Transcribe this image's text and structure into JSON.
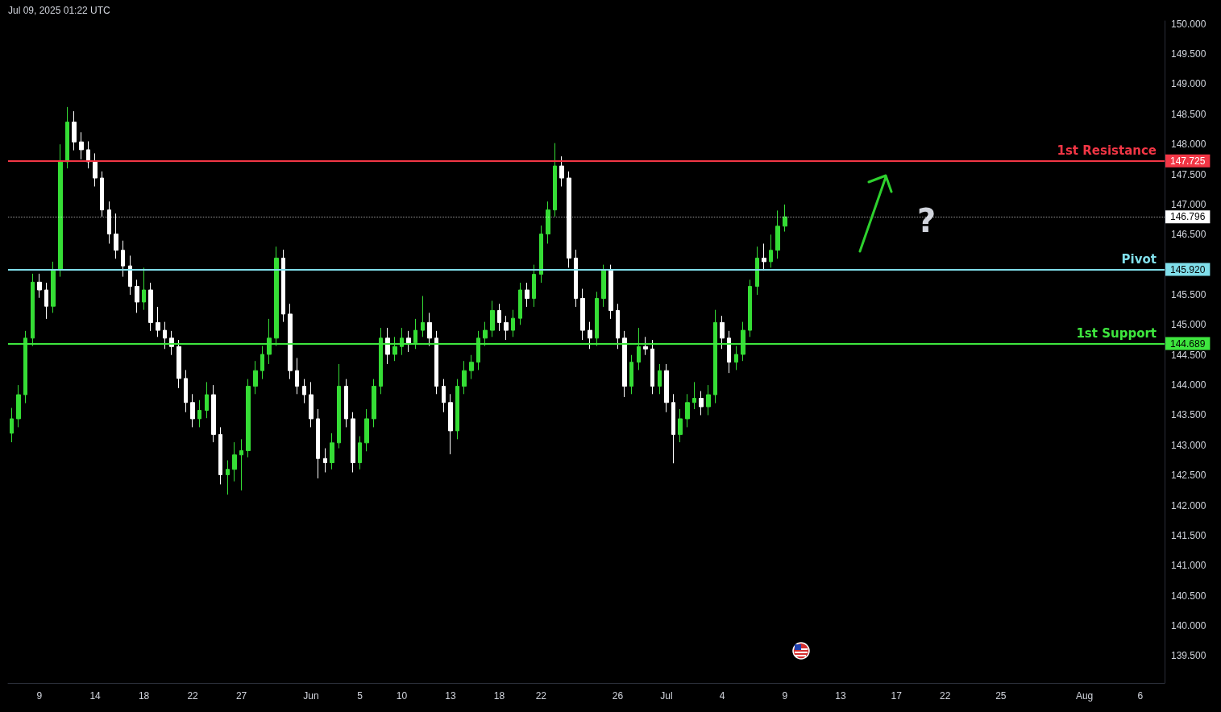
{
  "chart_data": {
    "type": "candlestick",
    "annotations": [
      "Jul 09, 2025 01:22 UTC",
      "?",
      "147.725",
      "145.920",
      "144.689",
      "146.796"
    ],
    "categories": [
      null,
      null,
      null,
      null,
      "9",
      null,
      null,
      null,
      null,
      null,
      null,
      null,
      "14",
      null,
      null,
      null,
      null,
      null,
      null,
      "18",
      null,
      null,
      null,
      null,
      null,
      null,
      "22",
      null,
      null,
      null,
      null,
      null,
      null,
      "27",
      null,
      null,
      null,
      null,
      null,
      null,
      null,
      null,
      null,
      "Jun",
      null,
      null,
      null,
      null,
      null,
      null,
      "5",
      null,
      null,
      null,
      null,
      null,
      "10",
      null,
      null,
      null,
      null,
      null,
      null,
      "13",
      null,
      null,
      null,
      null,
      null,
      null,
      "18",
      null,
      null,
      null,
      null,
      null,
      "22",
      null,
      null,
      null,
      null,
      null,
      null,
      null,
      null,
      null,
      null,
      "26",
      null,
      null,
      null,
      null,
      null,
      null,
      "Jul",
      null,
      null,
      null,
      null,
      null,
      null,
      null,
      "4",
      null,
      null,
      null,
      null,
      null,
      null,
      null,
      null,
      "9",
      null,
      null,
      null,
      null,
      null,
      null,
      null,
      "13",
      null,
      null,
      null,
      null,
      null,
      null,
      null,
      "17",
      null,
      null,
      null,
      null,
      null,
      null,
      "22",
      null,
      null,
      null,
      null,
      null,
      null,
      null,
      "25",
      null,
      null,
      null,
      null,
      null,
      null,
      null,
      null,
      null,
      null,
      null,
      "Aug",
      null,
      null,
      null,
      null,
      null,
      null,
      null,
      "6",
      null,
      null,
      null
    ],
    "ohlc": [
      [
        143.2,
        143.62,
        143.05,
        143.44
      ],
      [
        143.44,
        144.0,
        143.3,
        143.84
      ],
      [
        143.84,
        144.9,
        143.7,
        144.78
      ],
      [
        144.78,
        145.85,
        144.65,
        145.71
      ],
      [
        145.71,
        145.85,
        145.45,
        145.58
      ],
      [
        145.58,
        145.7,
        145.1,
        145.31
      ],
      [
        145.31,
        146.05,
        145.2,
        145.91
      ],
      [
        145.91,
        148.0,
        145.8,
        147.71
      ],
      [
        147.71,
        148.62,
        147.6,
        148.37
      ],
      [
        148.37,
        148.55,
        147.9,
        148.04
      ],
      [
        148.04,
        148.2,
        147.75,
        147.91
      ],
      [
        147.91,
        148.05,
        147.6,
        147.71
      ],
      [
        147.71,
        147.85,
        147.3,
        147.44
      ],
      [
        147.44,
        147.55,
        146.8,
        146.91
      ],
      [
        146.91,
        147.05,
        146.35,
        146.51
      ],
      [
        146.51,
        146.85,
        146.1,
        146.24
      ],
      [
        146.24,
        146.4,
        145.8,
        145.98
      ],
      [
        145.98,
        146.15,
        145.5,
        145.64
      ],
      [
        145.64,
        145.75,
        145.2,
        145.38
      ],
      [
        145.38,
        145.95,
        145.25,
        145.58
      ],
      [
        145.58,
        145.7,
        144.9,
        145.04
      ],
      [
        145.04,
        145.3,
        144.8,
        144.91
      ],
      [
        144.91,
        145.05,
        144.6,
        144.78
      ],
      [
        144.78,
        144.9,
        144.5,
        144.64
      ],
      [
        144.64,
        144.75,
        143.95,
        144.11
      ],
      [
        144.11,
        144.25,
        143.55,
        143.71
      ],
      [
        143.71,
        143.85,
        143.3,
        143.44
      ],
      [
        143.44,
        143.75,
        143.3,
        143.58
      ],
      [
        143.58,
        144.05,
        143.45,
        143.84
      ],
      [
        143.84,
        144.0,
        143.05,
        143.18
      ],
      [
        143.18,
        143.3,
        142.35,
        142.51
      ],
      [
        142.51,
        142.75,
        142.18,
        142.6
      ],
      [
        142.6,
        143.05,
        142.4,
        142.84
      ],
      [
        142.84,
        143.1,
        142.25,
        142.91
      ],
      [
        142.91,
        144.1,
        142.8,
        143.98
      ],
      [
        143.98,
        144.4,
        143.85,
        144.24
      ],
      [
        144.24,
        144.65,
        144.1,
        144.51
      ],
      [
        144.51,
        145.1,
        144.35,
        144.78
      ],
      [
        144.78,
        146.3,
        144.65,
        146.11
      ],
      [
        146.11,
        146.25,
        145.05,
        145.18
      ],
      [
        145.18,
        145.35,
        144.1,
        144.24
      ],
      [
        144.24,
        144.45,
        143.85,
        143.98
      ],
      [
        143.98,
        144.1,
        143.7,
        143.84
      ],
      [
        143.84,
        144.05,
        143.3,
        143.44
      ],
      [
        143.44,
        143.6,
        142.45,
        142.78
      ],
      [
        142.78,
        142.95,
        142.55,
        142.71
      ],
      [
        142.71,
        143.2,
        142.6,
        143.04
      ],
      [
        143.04,
        144.35,
        142.95,
        143.98
      ],
      [
        143.98,
        144.1,
        143.3,
        143.44
      ],
      [
        143.44,
        143.55,
        142.55,
        142.71
      ],
      [
        142.71,
        143.15,
        142.6,
        143.04
      ],
      [
        143.04,
        143.6,
        142.9,
        143.44
      ],
      [
        143.44,
        144.1,
        143.3,
        143.98
      ],
      [
        143.98,
        144.95,
        143.85,
        144.78
      ],
      [
        144.78,
        144.95,
        144.35,
        144.51
      ],
      [
        144.51,
        144.8,
        144.4,
        144.64
      ],
      [
        144.64,
        144.95,
        144.5,
        144.78
      ],
      [
        144.78,
        144.9,
        144.55,
        144.7
      ],
      [
        144.7,
        145.1,
        144.6,
        144.91
      ],
      [
        144.91,
        145.48,
        144.8,
        145.04
      ],
      [
        145.04,
        145.2,
        144.65,
        144.78
      ],
      [
        144.78,
        144.9,
        143.85,
        143.98
      ],
      [
        143.98,
        144.1,
        143.55,
        143.71
      ],
      [
        143.71,
        143.85,
        142.85,
        143.24
      ],
      [
        143.24,
        144.1,
        143.1,
        143.98
      ],
      [
        143.98,
        144.4,
        143.85,
        144.24
      ],
      [
        144.24,
        144.5,
        144.1,
        144.38
      ],
      [
        144.38,
        144.9,
        144.25,
        144.78
      ],
      [
        144.78,
        145.05,
        144.65,
        144.91
      ],
      [
        144.91,
        145.4,
        144.8,
        145.24
      ],
      [
        145.24,
        145.35,
        144.9,
        145.04
      ],
      [
        145.04,
        145.15,
        144.75,
        144.91
      ],
      [
        144.91,
        145.25,
        144.8,
        145.11
      ],
      [
        145.11,
        145.7,
        145.0,
        145.58
      ],
      [
        145.58,
        145.7,
        145.3,
        145.44
      ],
      [
        145.44,
        146.0,
        145.3,
        145.84
      ],
      [
        145.84,
        146.65,
        145.7,
        146.51
      ],
      [
        146.51,
        147.05,
        146.35,
        146.91
      ],
      [
        146.91,
        148.02,
        146.8,
        147.64
      ],
      [
        147.64,
        147.8,
        147.3,
        147.44
      ],
      [
        147.44,
        147.55,
        145.95,
        146.11
      ],
      [
        146.11,
        146.25,
        145.3,
        145.44
      ],
      [
        145.44,
        145.6,
        144.75,
        144.91
      ],
      [
        144.91,
        145.05,
        144.6,
        144.78
      ],
      [
        144.78,
        145.55,
        144.65,
        145.44
      ],
      [
        145.44,
        146.0,
        145.3,
        145.91
      ],
      [
        145.91,
        146.0,
        145.1,
        145.24
      ],
      [
        145.24,
        145.35,
        144.6,
        144.78
      ],
      [
        144.78,
        144.9,
        143.8,
        143.98
      ],
      [
        143.98,
        144.5,
        143.85,
        144.38
      ],
      [
        144.38,
        144.95,
        144.25,
        144.64
      ],
      [
        144.64,
        144.8,
        144.5,
        144.6
      ],
      [
        144.6,
        144.75,
        143.85,
        143.98
      ],
      [
        143.98,
        144.35,
        143.85,
        144.24
      ],
      [
        144.24,
        144.35,
        143.55,
        143.71
      ],
      [
        143.71,
        143.85,
        142.7,
        143.18
      ],
      [
        143.18,
        143.6,
        143.05,
        143.44
      ],
      [
        143.44,
        143.85,
        143.3,
        143.71
      ],
      [
        143.71,
        144.05,
        143.6,
        143.78
      ],
      [
        143.78,
        143.9,
        143.5,
        143.64
      ],
      [
        143.64,
        144.0,
        143.5,
        143.84
      ],
      [
        143.84,
        145.25,
        143.7,
        145.04
      ],
      [
        145.04,
        145.15,
        144.6,
        144.78
      ],
      [
        144.78,
        144.9,
        144.2,
        144.38
      ],
      [
        144.38,
        144.65,
        144.25,
        144.51
      ],
      [
        144.51,
        145.05,
        144.4,
        144.91
      ],
      [
        144.91,
        145.75,
        144.8,
        145.64
      ],
      [
        145.64,
        146.3,
        145.5,
        146.11
      ],
      [
        146.11,
        146.35,
        145.9,
        146.05
      ],
      [
        146.05,
        146.5,
        145.95,
        146.24
      ],
      [
        146.24,
        146.9,
        146.1,
        146.64
      ],
      [
        146.64,
        147.0,
        146.55,
        146.796
      ],
      null,
      null,
      null,
      null,
      null,
      null,
      null,
      null,
      null,
      null,
      null,
      null,
      null,
      null,
      null,
      null,
      null,
      null,
      null,
      null,
      null,
      null,
      null,
      null,
      null,
      null,
      null,
      null,
      null,
      null,
      null,
      null,
      null,
      null,
      null,
      null,
      null,
      null,
      null,
      null,
      null,
      null,
      null,
      null,
      null,
      null,
      null,
      null,
      null,
      null,
      null,
      null,
      null,
      null
    ],
    "ylim": [
      139.05,
      150.05
    ],
    "yticks": [
      {
        "value": 139.5,
        "label": "139.500"
      },
      {
        "value": 140,
        "label": "140.000"
      },
      {
        "value": 140.5,
        "label": "140.500"
      },
      {
        "value": 141,
        "label": "141.000"
      },
      {
        "value": 141.5,
        "label": "141.500"
      },
      {
        "value": 142,
        "label": "142.000"
      },
      {
        "value": 142.5,
        "label": "142.500"
      },
      {
        "value": 143,
        "label": "143.000"
      },
      {
        "value": 143.5,
        "label": "143.500"
      },
      {
        "value": 144,
        "label": "144.000"
      },
      {
        "value": 144.5,
        "label": "144.500"
      },
      {
        "value": 145,
        "label": "145.000"
      },
      {
        "value": 145.5,
        "label": "145.500"
      },
      {
        "value": 146.5,
        "label": "146.500"
      },
      {
        "value": 147,
        "label": "147.000"
      },
      {
        "value": 147.5,
        "label": "147.500"
      },
      {
        "value": 148,
        "label": "148.000"
      },
      {
        "value": 148.5,
        "label": "148.500"
      },
      {
        "value": 149,
        "label": "149.000"
      },
      {
        "value": 149.5,
        "label": "149.500"
      },
      {
        "value": 150,
        "label": "150.000"
      }
    ],
    "ref_lines": [
      {
        "axis": "y",
        "value": 147.725,
        "label": "1st Resistance",
        "color": "#f23645"
      },
      {
        "axis": "y",
        "value": 145.92,
        "label": "Pivot",
        "color": "#80deea"
      },
      {
        "axis": "y",
        "value": 144.689,
        "label": "1st Support",
        "color": "#3ee63e"
      },
      {
        "axis": "y",
        "value": 146.796,
        "label": null,
        "color": "#ffffff",
        "line_style": "dotted"
      }
    ]
  }
}
